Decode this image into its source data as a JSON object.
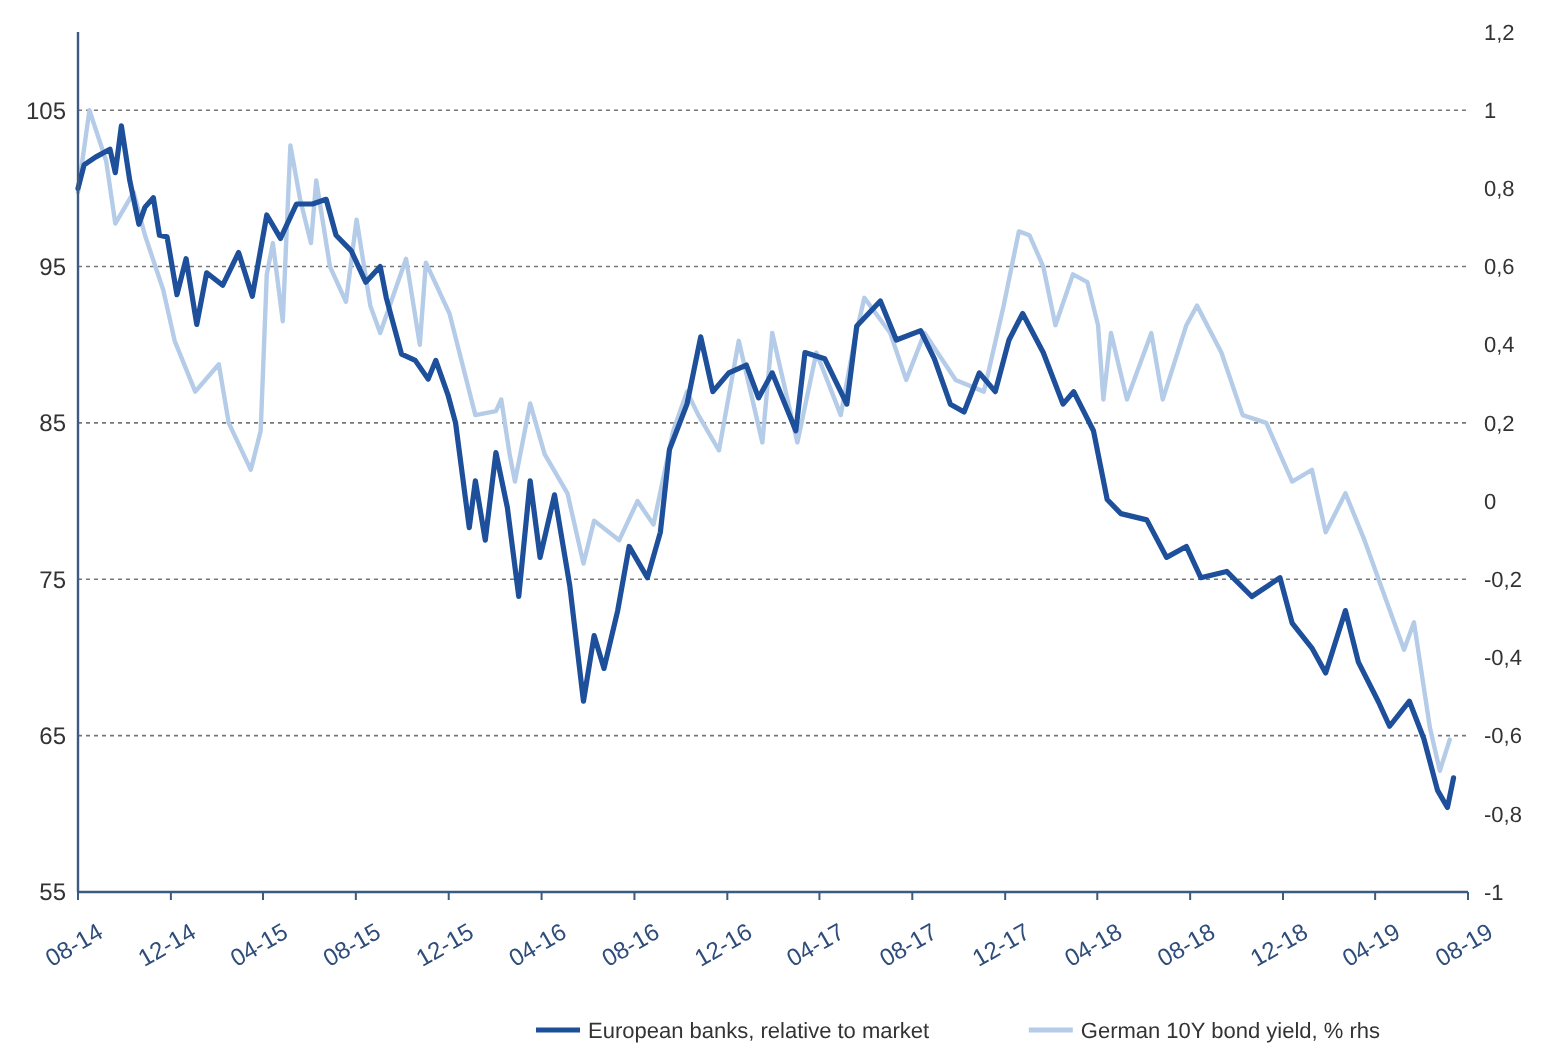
{
  "chart_data": {
    "type": "line",
    "xlim": [
      "2014-08-01",
      "2019-08-01"
    ],
    "xticks": [
      {
        "value": "2014-08-01",
        "label": "08-14"
      },
      {
        "value": "2014-12-01",
        "label": "12-14"
      },
      {
        "value": "2015-04-01",
        "label": "04-15"
      },
      {
        "value": "2015-08-01",
        "label": "08-15"
      },
      {
        "value": "2015-12-01",
        "label": "12-15"
      },
      {
        "value": "2016-04-01",
        "label": "04-16"
      },
      {
        "value": "2016-08-01",
        "label": "08-16"
      },
      {
        "value": "2016-12-01",
        "label": "12-16"
      },
      {
        "value": "2017-04-01",
        "label": "04-17"
      },
      {
        "value": "2017-08-01",
        "label": "08-17"
      },
      {
        "value": "2017-12-01",
        "label": "12-17"
      },
      {
        "value": "2018-04-01",
        "label": "04-18"
      },
      {
        "value": "2018-08-01",
        "label": "08-18"
      },
      {
        "value": "2018-12-01",
        "label": "12-18"
      },
      {
        "value": "2019-04-01",
        "label": "04-19"
      },
      {
        "value": "2019-08-01",
        "label": "08-19"
      }
    ],
    "ylim": [
      55,
      110
    ],
    "yticks": [
      55,
      65,
      75,
      85,
      95,
      105
    ],
    "y2lim": [
      -1,
      1.2
    ],
    "y2ticks": [
      -1,
      {
        "value": -0.8,
        "label": "-0,8"
      },
      {
        "value": -0.6,
        "label": "-0,6"
      },
      {
        "value": -0.4,
        "label": "-0,4"
      },
      {
        "value": -0.2,
        "label": "-0,2"
      },
      0,
      {
        "value": 0.2,
        "label": "0,2"
      },
      {
        "value": 0.4,
        "label": "0,4"
      },
      {
        "value": 0.6,
        "label": "0,6"
      },
      {
        "value": 0.8,
        "label": "0,8"
      },
      1,
      {
        "value": 1.2,
        "label": "1,2"
      }
    ],
    "grid": "y",
    "legend": "bottom",
    "marker": "none",
    "line_style": "solid",
    "series": [
      {
        "name": "European banks, relative to market",
        "color": "#1d4f9a",
        "x": [
          "2014-08-01",
          "2014-08-09",
          "2014-08-24",
          "2014-09-12",
          "2014-09-19",
          "2014-09-27",
          "2014-10-08",
          "2014-10-20",
          "2014-10-28",
          "2014-11-08",
          "2014-11-16",
          "2014-11-26",
          "2014-12-09",
          "2014-12-21",
          "2015-01-04",
          "2015-01-17",
          "2015-02-07",
          "2015-02-28",
          "2015-03-18",
          "2015-04-06",
          "2015-04-24",
          "2015-05-15",
          "2015-06-05",
          "2015-06-23",
          "2015-07-06",
          "2015-07-26",
          "2015-08-14",
          "2015-09-02",
          "2015-09-10",
          "2015-09-30",
          "2015-10-18",
          "2015-11-04",
          "2015-11-14",
          "2015-11-30",
          "2015-12-10",
          "2015-12-28",
          "2016-01-05",
          "2016-01-18",
          "2016-02-01",
          "2016-02-16",
          "2016-03-02",
          "2016-03-17",
          "2016-03-30",
          "2016-04-18",
          "2016-05-08",
          "2016-05-26",
          "2016-06-09",
          "2016-06-22",
          "2016-07-10",
          "2016-07-25",
          "2016-08-18",
          "2016-09-04",
          "2016-09-16",
          "2016-10-09",
          "2016-10-27",
          "2016-11-12",
          "2016-12-03",
          "2016-12-26",
          "2017-01-11",
          "2017-01-29",
          "2017-03-01",
          "2017-03-13",
          "2017-04-08",
          "2017-05-07",
          "2017-05-20",
          "2017-06-20",
          "2017-07-11",
          "2017-08-12",
          "2017-08-30",
          "2017-09-20",
          "2017-10-08",
          "2017-10-28",
          "2017-11-18",
          "2017-12-06",
          "2017-12-24",
          "2018-01-20",
          "2018-02-15",
          "2018-03-01",
          "2018-03-27",
          "2018-04-14",
          "2018-05-02",
          "2018-06-05",
          "2018-07-01",
          "2018-07-27",
          "2018-08-15",
          "2018-09-18",
          "2018-10-21",
          "2018-11-27",
          "2018-12-13",
          "2019-01-08",
          "2019-01-26",
          "2019-02-21",
          "2019-03-10",
          "2019-04-05",
          "2019-04-20",
          "2019-05-16",
          "2019-06-04",
          "2019-06-22",
          "2019-07-05",
          "2019-07-13"
        ],
        "values": [
          100,
          101.5,
          102,
          102.5,
          101,
          104,
          100.5,
          97.7,
          98.8,
          99.4,
          97,
          96.9,
          93.2,
          95.5,
          91.3,
          94.6,
          93.8,
          95.9,
          93.1,
          98.3,
          96.8,
          99,
          99,
          99.3,
          97,
          96,
          94,
          95,
          93,
          89.4,
          89,
          87.8,
          89,
          86.8,
          85,
          78.3,
          81.3,
          77.5,
          83.1,
          79.6,
          73.9,
          81.3,
          76.4,
          80.4,
          74.6,
          67.2,
          71.4,
          69.3,
          73,
          77.1,
          75.1,
          78,
          83.3,
          86.2,
          90.5,
          87,
          88.2,
          88.7,
          86.6,
          88.2,
          84.5,
          89.5,
          89.1,
          86.2,
          91.2,
          92.8,
          90.3,
          90.9,
          89.1,
          86.2,
          85.7,
          88.2,
          87,
          90.3,
          92,
          89.5,
          86.2,
          87,
          84.5,
          80.1,
          79.2,
          78.8,
          76.4,
          77.1,
          75.1,
          75.5,
          73.9,
          75.1,
          72.2,
          70.6,
          69,
          73,
          69.7,
          67.2,
          65.6,
          67.2,
          64.8,
          61.5,
          60.4,
          62.3
        ]
      },
      {
        "name": "German 10Y bond yield, % rhs",
        "color": "#b5cce8",
        "axis": "y2",
        "x": [
          "2014-08-01",
          "2014-08-16",
          "2014-09-07",
          "2014-09-19",
          "2014-10-13",
          "2014-10-28",
          "2014-11-21",
          "2014-12-06",
          "2015-01-02",
          "2015-02-02",
          "2015-02-15",
          "2015-03-16",
          "2015-03-29",
          "2015-04-06",
          "2015-04-14",
          "2015-04-27",
          "2015-05-07",
          "2015-05-20",
          "2015-06-03",
          "2015-06-10",
          "2015-06-28",
          "2015-07-19",
          "2015-08-02",
          "2015-08-20",
          "2015-09-02",
          "2015-10-06",
          "2015-10-24",
          "2015-11-01",
          "2015-12-02",
          "2016-01-05",
          "2016-02-01",
          "2016-02-08",
          "2016-02-19",
          "2016-02-26",
          "2016-03-17",
          "2016-04-05",
          "2016-05-05",
          "2016-05-26",
          "2016-06-09",
          "2016-07-12",
          "2016-08-05",
          "2016-08-26",
          "2016-09-21",
          "2016-10-09",
          "2016-10-24",
          "2016-11-20",
          "2016-12-16",
          "2017-01-16",
          "2017-01-29",
          "2017-03-03",
          "2017-03-28",
          "2017-04-29",
          "2017-05-17",
          "2017-05-30",
          "2017-07-03",
          "2017-07-24",
          "2017-08-17",
          "2017-09-27",
          "2017-11-03",
          "2017-11-29",
          "2017-12-19",
          "2018-01-02",
          "2018-01-20",
          "2018-02-05",
          "2018-02-28",
          "2018-03-19",
          "2018-04-02",
          "2018-04-09",
          "2018-04-19",
          "2018-05-10",
          "2018-06-11",
          "2018-06-26",
          "2018-07-27",
          "2018-08-10",
          "2018-09-11",
          "2018-10-09",
          "2018-11-09",
          "2018-12-13",
          "2019-01-08",
          "2019-01-26",
          "2019-02-21",
          "2019-03-18",
          "2019-04-13",
          "2019-05-09",
          "2019-05-22",
          "2019-06-12",
          "2019-06-25",
          "2019-07-08"
        ],
        "values": [
          0.79,
          1.0,
          0.87,
          0.71,
          0.79,
          0.68,
          0.54,
          0.41,
          0.28,
          0.35,
          0.2,
          0.08,
          0.18,
          0.58,
          0.66,
          0.46,
          0.91,
          0.77,
          0.66,
          0.82,
          0.6,
          0.51,
          0.72,
          0.5,
          0.43,
          0.62,
          0.4,
          0.61,
          0.48,
          0.22,
          0.23,
          0.26,
          0.12,
          0.05,
          0.25,
          0.12,
          0.02,
          -0.16,
          -0.05,
          -0.1,
          0.0,
          -0.06,
          0.18,
          0.28,
          0.22,
          0.13,
          0.41,
          0.15,
          0.43,
          0.15,
          0.38,
          0.22,
          0.41,
          0.52,
          0.43,
          0.31,
          0.43,
          0.31,
          0.28,
          0.5,
          0.69,
          0.68,
          0.6,
          0.45,
          0.58,
          0.56,
          0.45,
          0.26,
          0.43,
          0.26,
          0.43,
          0.26,
          0.45,
          0.5,
          0.38,
          0.22,
          0.2,
          0.05,
          0.08,
          -0.08,
          0.02,
          -0.1,
          -0.24,
          -0.38,
          -0.31,
          -0.58,
          -0.69,
          -0.61
        ]
      }
    ]
  }
}
